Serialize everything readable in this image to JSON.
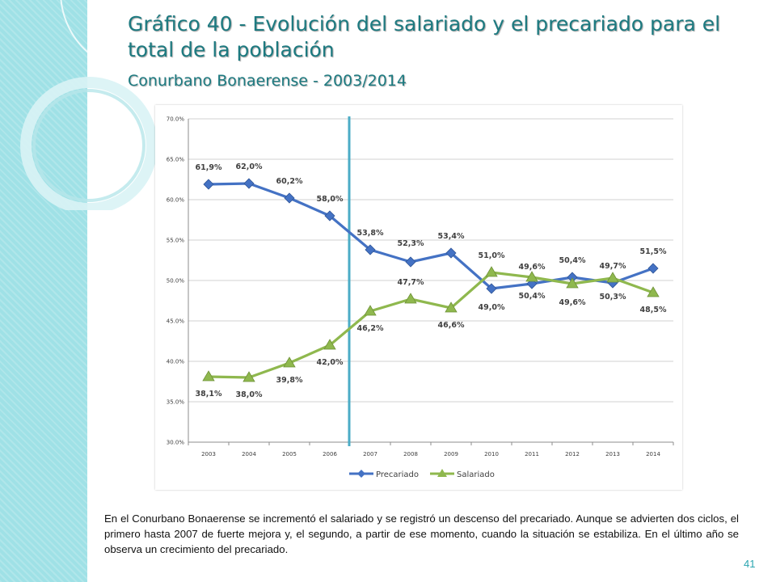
{
  "slide": {
    "title": "Gráfico 40 - Evolución del salariado y el precariado para el total de la población",
    "subtitle": "Conurbano Bonaerense - 2003/2014",
    "body_text": "En el Conurbano Bonaerense se incrementó el salariado y se registró un descenso del precariado. Aunque se advierten dos ciclos, el primero hasta 2007 de fuerte mejora y, el segundo, a partir de ese momento, cuando la situación se estabiliza. En el último año se observa un crecimiento del precariado.",
    "page_number": "41",
    "theme_colors": {
      "accent": "#1d7a80",
      "strip": "#9fe1e6"
    }
  },
  "chart_data": {
    "type": "line",
    "x": [
      "2003",
      "2004",
      "2005",
      "2006",
      "2007",
      "2008",
      "2009",
      "2010",
      "2011",
      "2012",
      "2013",
      "2014"
    ],
    "y_ticks": [
      "30.0%",
      "35.0%",
      "40.0%",
      "45.0%",
      "50.0%",
      "55.0%",
      "60.0%",
      "65.0%",
      "70.0%"
    ],
    "ylim": [
      30,
      70
    ],
    "grid": "horizontal",
    "legend_position": "bottom",
    "vertical_marker_x": "2006-2007",
    "series": [
      {
        "name": "Precariado",
        "color": "#4472c4",
        "marker": "diamond",
        "values": [
          61.9,
          62.0,
          60.2,
          58.0,
          53.8,
          52.3,
          53.4,
          49.0,
          49.6,
          50.4,
          49.7,
          51.5
        ],
        "labels": [
          "61,9%",
          "62,0%",
          "60,2%",
          "58,0%",
          "53,8%",
          "52,3%",
          "53,4%",
          "49,0%",
          "49,6%",
          "50,4%",
          "49,7%",
          "51,5%"
        ]
      },
      {
        "name": "Salariado",
        "color": "#8fb84e",
        "marker": "triangle",
        "values": [
          38.1,
          38.0,
          39.8,
          42.0,
          46.2,
          47.7,
          46.6,
          51.0,
          50.4,
          49.6,
          50.3,
          48.5
        ],
        "labels": [
          "38,1%",
          "38,0%",
          "39,8%",
          "42,0%",
          "46,2%",
          "47,7%",
          "46,6%",
          "51,0%",
          "50,4%",
          "49,6%",
          "50,3%",
          "48,5%"
        ]
      }
    ]
  }
}
